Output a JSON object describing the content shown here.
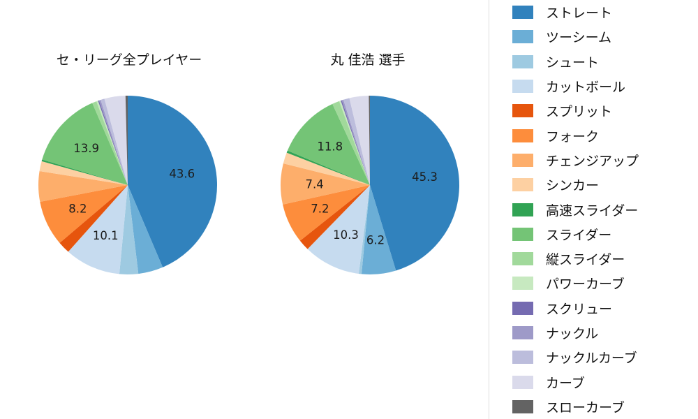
{
  "figure": {
    "background": "#ffffff"
  },
  "legend": {
    "items": [
      {
        "label": "ストレート",
        "color": "#3182bd"
      },
      {
        "label": "ツーシーム",
        "color": "#6baed6"
      },
      {
        "label": "シュート",
        "color": "#9ecae1"
      },
      {
        "label": "カットボール",
        "color": "#c6dbef"
      },
      {
        "label": "スプリット",
        "color": "#e6550d"
      },
      {
        "label": "フォーク",
        "color": "#fd8d3c"
      },
      {
        "label": "チェンジアップ",
        "color": "#fdae6b"
      },
      {
        "label": "シンカー",
        "color": "#fdd0a2"
      },
      {
        "label": "高速スライダー",
        "color": "#31a354"
      },
      {
        "label": "スライダー",
        "color": "#74c476"
      },
      {
        "label": "縦スライダー",
        "color": "#a1d99b"
      },
      {
        "label": "パワーカーブ",
        "color": "#c7e9c0"
      },
      {
        "label": "スクリュー",
        "color": "#756bb1"
      },
      {
        "label": "ナックル",
        "color": "#9e9ac8"
      },
      {
        "label": "ナックルカーブ",
        "color": "#bcbddc"
      },
      {
        "label": "カーブ",
        "color": "#dadaeb"
      },
      {
        "label": "スローカーブ",
        "color": "#636363"
      }
    ]
  },
  "chart_data": [
    {
      "type": "pie",
      "title": "セ・リーグ全プレイヤー",
      "categories": [
        "ストレート",
        "ツーシーム",
        "シュート",
        "カットボール",
        "スプリット",
        "フォーク",
        "チェンジアップ",
        "シンカー",
        "高速スライダー",
        "スライダー",
        "縦スライダー",
        "パワーカーブ",
        "スクリュー",
        "ナックル",
        "ナックルカーブ",
        "カーブ",
        "スローカーブ"
      ],
      "values": [
        43.6,
        4.5,
        3.4,
        10.1,
        2.2,
        8.2,
        5.5,
        1.8,
        0.3,
        13.9,
        0.8,
        0.3,
        0.2,
        0.3,
        0.7,
        3.8,
        0.4
      ],
      "labeled_values": [
        43.6,
        10.1,
        8.2,
        13.9
      ],
      "label_min": 6,
      "units": "percent",
      "start_angle": "top",
      "direction": "clockwise",
      "legend_position": "right"
    },
    {
      "type": "pie",
      "title": "丸 佳浩 選手",
      "categories": [
        "ストレート",
        "ツーシーム",
        "シュート",
        "カットボール",
        "スプリット",
        "フォーク",
        "チェンジアップ",
        "シンカー",
        "高速スライダー",
        "スライダー",
        "縦スライダー",
        "パワーカーブ",
        "スクリュー",
        "ナックル",
        "ナックルカーブ",
        "カーブ",
        "スローカーブ"
      ],
      "values": [
        45.3,
        6.2,
        0.5,
        10.3,
        2.0,
        7.2,
        7.4,
        2.0,
        0.4,
        11.8,
        1.3,
        0.3,
        0.2,
        0.3,
        1.1,
        3.5,
        0.2
      ],
      "labeled_values": [
        45.3,
        6.2,
        10.3,
        7.2,
        7.4,
        11.8
      ],
      "label_min": 6,
      "units": "percent",
      "start_angle": "top",
      "direction": "clockwise",
      "legend_position": "right"
    }
  ]
}
